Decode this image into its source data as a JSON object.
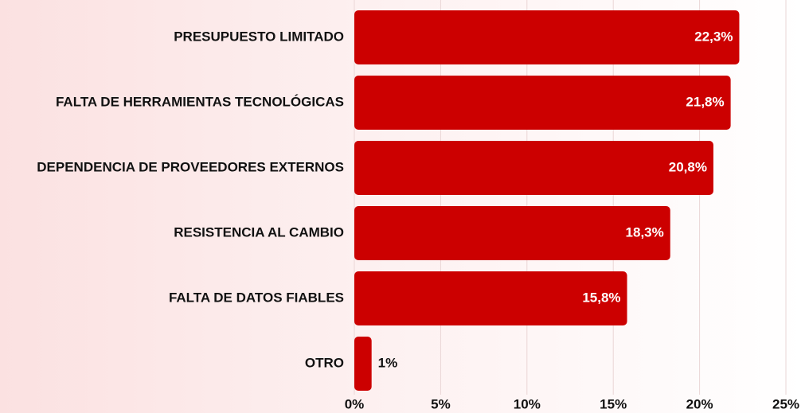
{
  "chart_data": {
    "type": "bar",
    "orientation": "horizontal",
    "categories": [
      "PRESUPUESTO LIMITADO",
      "FALTA DE HERRAMIENTAS TECNOLÓGICAS",
      "DEPENDENCIA DE PROVEEDORES EXTERNOS",
      "RESISTENCIA AL CAMBIO",
      "FALTA DE DATOS FIABLES",
      "OTRO"
    ],
    "values": [
      22.3,
      21.8,
      20.8,
      18.3,
      15.8,
      1
    ],
    "value_labels": [
      "22,3%",
      "21,8%",
      "20,8%",
      "18,3%",
      "15,8%",
      "1%"
    ],
    "color": "#cc0000",
    "xlim": [
      0,
      25
    ],
    "xticks": [
      {
        "value": 0,
        "label": "0%"
      },
      {
        "value": 5,
        "label": "5%"
      },
      {
        "value": 10,
        "label": "10%"
      },
      {
        "value": 15,
        "label": "15%"
      },
      {
        "value": 20,
        "label": "20%"
      },
      {
        "value": 25,
        "label": "25%"
      }
    ],
    "grid": true
  }
}
